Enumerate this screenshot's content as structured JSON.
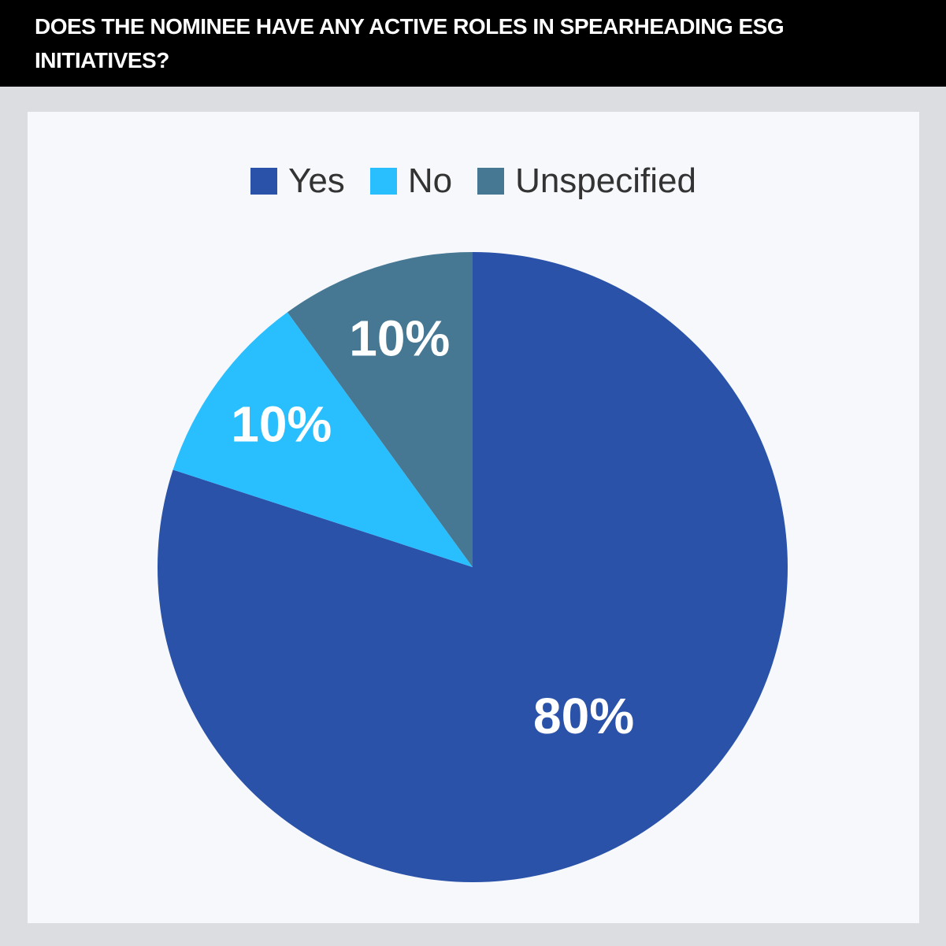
{
  "chart_data": {
    "type": "pie",
    "title": "DOES THE NOMINEE HAVE ANY ACTIVE ROLES IN SPEARHEADING ESG INITIATIVES?",
    "categories": [
      "Yes",
      "No",
      "Unspecified"
    ],
    "values": [
      80,
      10,
      10
    ],
    "value_labels": [
      "80%",
      "10%",
      "10%"
    ],
    "colors": [
      "#2a52a9",
      "#29bfff",
      "#467893"
    ],
    "legend": "top"
  }
}
